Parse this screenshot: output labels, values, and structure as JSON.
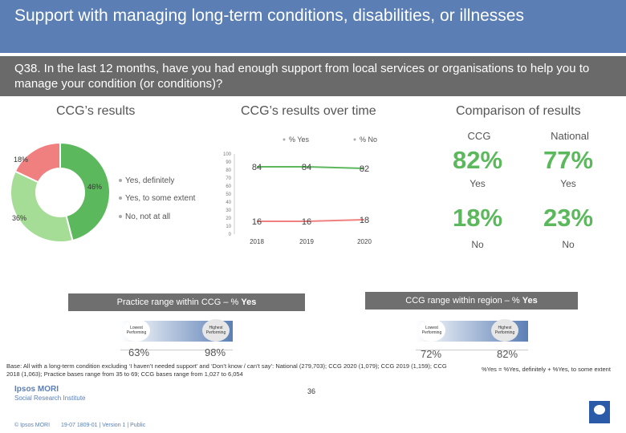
{
  "header": {
    "title": "Support with managing long-term conditions, disabilities, or illnesses",
    "question": "Q38. In the last 12 months, have you had enough support from local services or organisations to help you to manage your condition (or conditions)?"
  },
  "sections": {
    "ccg_results": "CCG’s results",
    "over_time": "CCG’s results over time",
    "comparison": "Comparison of results"
  },
  "colors": {
    "title_bg": "#5b7fb5",
    "question_bg": "#6a6a6a",
    "yes_definitely": "#5cb85c",
    "yes_some_extent": "#a6dd96",
    "no_not_at_all": "#f08080",
    "ccg_pct": "#5cb85c",
    "national_pct": "#5cb85c",
    "no_pct": "#5cb85c",
    "range_bar": "#6f6f6f"
  },
  "chart_data": [
    {
      "type": "pie",
      "variant": "donut",
      "categories": [
        "Yes, definitely",
        "Yes, to some extent",
        "No, not at all"
      ],
      "values": [
        46,
        36,
        18
      ],
      "labels": [
        "46%",
        "36%",
        "18%"
      ],
      "legend": [
        "Yes, definitely",
        "Yes, to some extent",
        "No, not at all"
      ]
    },
    {
      "type": "line",
      "x": [
        "2018",
        "2019",
        "2020"
      ],
      "series": [
        {
          "name": "% Yes",
          "values": [
            84,
            84,
            82
          ],
          "color": "#5cb85c"
        },
        {
          "name": "% No",
          "values": [
            16,
            16,
            18
          ],
          "color": "#f08080"
        }
      ],
      "ylim": [
        0,
        100
      ],
      "yticks": [
        "0",
        "10",
        "20",
        "30",
        "40",
        "50",
        "60",
        "70",
        "80",
        "90",
        "100"
      ],
      "legend": [
        "% Yes",
        "% No"
      ],
      "legend_position": "top"
    }
  ],
  "comparison": {
    "ccg_label": "CCG",
    "national_label": "National",
    "ccg_yes": "82%",
    "national_yes": "77%",
    "yes_label": "Yes",
    "ccg_no": "18%",
    "national_no": "23%",
    "no_label": "No"
  },
  "ranges": {
    "practice_title": "Practice range within CCG – % ",
    "practice_title_bold": "Yes",
    "region_title": "CCG range within region – % ",
    "region_title_bold": "Yes",
    "lowest_label": "Lowest Performing",
    "highest_label": "Highest Performing",
    "practice_low": "63%",
    "practice_high": "98%",
    "region_low": "72%",
    "region_high": "82%"
  },
  "footer": {
    "base": "Base: All with a long-term condition excluding ‘I haven’t needed support’ and ‘Don’t know / can’t say’: National (279,703); CCG 2020 (1,079); CCG 2019 (1,159); CCG 2018 (1,063); Practice bases range from 35 to 69; CCG bases range from 1,027 to 6,054",
    "note": "%Yes = %Yes, definitely + %Yes, to some extent",
    "brand_line1": "Ipsos MORI",
    "brand_line2": "Social Research Institute",
    "copyright": "© Ipsos MORI",
    "job": "19-07 1809-01 | Version 1 | Public",
    "page": "36"
  }
}
